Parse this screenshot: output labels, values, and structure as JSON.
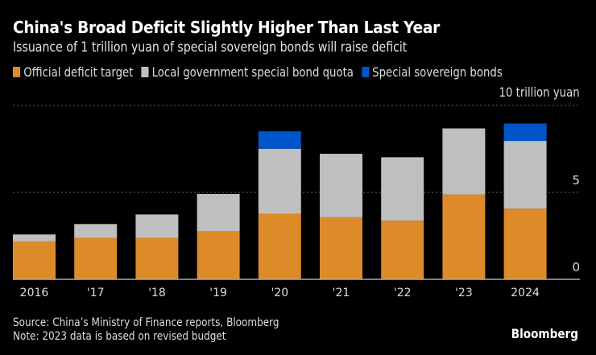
{
  "header": {
    "title": "China's Broad Deficit Slightly Higher Than Last Year",
    "subtitle": "Issuance of 1 trillion yuan of special sovereign bonds will raise deficit"
  },
  "footer": {
    "source": "Source: China’s Ministry of Finance reports, Bloomberg",
    "note": "Note: 2023 data is based on revised budget",
    "logo": "Bloomberg"
  },
  "colors": {
    "official": "#dd8a28",
    "local": "#bfbfbf",
    "sovereign": "#0055c8",
    "grid": "#666666",
    "axis": "#aaaaaa",
    "background": "#000000"
  },
  "chart_data": {
    "type": "bar",
    "stacked": true,
    "title": "China's Broad Deficit Slightly Higher Than Last Year",
    "subtitle": "Issuance of 1 trillion yuan of special sovereign bonds will raise deficit",
    "unit_label": "10 trillion yuan",
    "xlabel": "",
    "ylabel": "",
    "categories": [
      "2016",
      "'17",
      "'18",
      "'19",
      "'20",
      "'21",
      "'22",
      "'23",
      "2024"
    ],
    "series": [
      {
        "name": "Official deficit target",
        "color": "#dd8a28",
        "values": [
          2.18,
          2.38,
          2.38,
          2.76,
          3.76,
          3.57,
          3.37,
          4.88,
          4.06
        ]
      },
      {
        "name": "Local government special bond quota",
        "color": "#bfbfbf",
        "values": [
          0.4,
          0.8,
          1.35,
          2.15,
          3.75,
          3.65,
          3.65,
          3.8,
          3.9
        ]
      },
      {
        "name": "Special sovereign bonds",
        "color": "#0055c8",
        "values": [
          0,
          0,
          0,
          0,
          1.0,
          0,
          0,
          0,
          1.0
        ]
      }
    ],
    "ylim": [
      0,
      10
    ],
    "yticks": [
      0,
      5
    ],
    "yaxis_position": "right",
    "grid": true,
    "legend": "top-left",
    "source": "Source: China’s Ministry of Finance reports, Bloomberg",
    "note": "Note: 2023 data is based on revised budget"
  }
}
